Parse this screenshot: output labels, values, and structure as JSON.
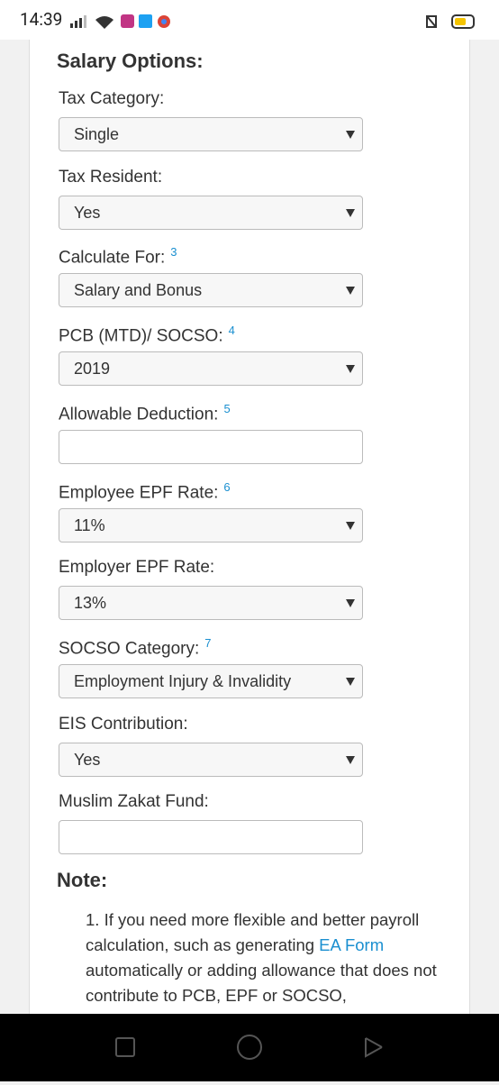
{
  "status_bar": {
    "time": "14:39"
  },
  "form": {
    "title": "Salary Options:",
    "fields": [
      {
        "label": "Tax Category:",
        "value": "Single"
      },
      {
        "label": "Tax Resident:",
        "value": "Yes"
      },
      {
        "label": "Calculate For:",
        "footnote": "3",
        "value": "Salary and Bonus"
      },
      {
        "label": "PCB (MTD)/ SOCSO:",
        "footnote": "4",
        "value": "2019"
      },
      {
        "label": "Allowable Deduction:",
        "footnote": "5"
      },
      {
        "label": "Employee EPF Rate:",
        "footnote": "6",
        "value": "11%"
      },
      {
        "label": "Employer EPF Rate:",
        "value": "13%"
      },
      {
        "label": "SOCSO Category:",
        "footnote": "7",
        "value": "Employment Injury & Invalidity"
      },
      {
        "label": "EIS Contribution:",
        "value": "Yes"
      },
      {
        "label": "Muslim Zakat Fund:"
      }
    ]
  },
  "note": {
    "title": "Note:",
    "items": [
      {
        "number": "1.",
        "segments": [
          {
            "text": "If you need more flexible and better payroll calculation, such as generating "
          },
          {
            "link": "EA Form"
          },
          {
            "text": " automatically or adding allowance that does not contribute to PCB, EPF or SOCSO,"
          }
        ]
      }
    ]
  }
}
